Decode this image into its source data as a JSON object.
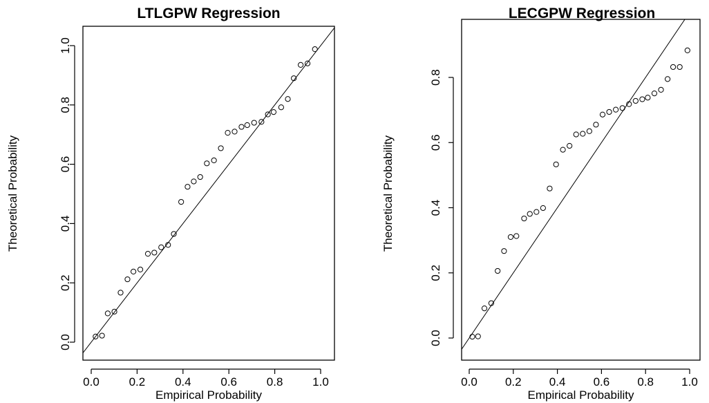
{
  "chart_data": [
    {
      "type": "scatter",
      "title": "LTLGPW Regression",
      "xlabel": "Empirical Probability",
      "ylabel": "Theoretical Probability",
      "xlim": [
        0,
        1
      ],
      "ylim": [
        0,
        1
      ],
      "xticks": [
        "0.0",
        "0.2",
        "0.4",
        "0.6",
        "0.8",
        "1.0"
      ],
      "yticks": [
        "0.0",
        "0.2",
        "0.4",
        "0.6",
        "0.8",
        "1.0"
      ],
      "reference_line": "y = x",
      "grid": false,
      "series": [
        {
          "x": [
            0.019,
            0.047,
            0.072,
            0.101,
            0.128,
            0.158,
            0.184,
            0.214,
            0.247,
            0.275,
            0.305,
            0.335,
            0.36,
            0.392,
            0.42,
            0.447,
            0.475,
            0.504,
            0.535,
            0.565,
            0.595,
            0.625,
            0.655,
            0.68,
            0.71,
            0.742,
            0.77,
            0.795,
            0.828,
            0.857,
            0.883,
            0.913,
            0.943,
            0.975
          ],
          "y": [
            0.019,
            0.022,
            0.097,
            0.103,
            0.167,
            0.212,
            0.238,
            0.245,
            0.298,
            0.302,
            0.32,
            0.328,
            0.365,
            0.473,
            0.524,
            0.542,
            0.557,
            0.603,
            0.613,
            0.654,
            0.706,
            0.71,
            0.726,
            0.732,
            0.74,
            0.743,
            0.768,
            0.776,
            0.792,
            0.82,
            0.89,
            0.935,
            0.94,
            0.988
          ]
        }
      ]
    },
    {
      "type": "scatter",
      "title": "LECGPW Regression",
      "xlabel": "Empirical Probability",
      "ylabel": "Theoretical Probability",
      "xlim": [
        0,
        1
      ],
      "ylim": [
        0,
        0.9
      ],
      "xticks": [
        "0.0",
        "0.2",
        "0.4",
        "0.6",
        "0.8",
        "1.0"
      ],
      "yticks": [
        "0.0",
        "0.2",
        "0.4",
        "0.6",
        "0.8"
      ],
      "reference_line": "y = x",
      "grid": false,
      "series": [
        {
          "x": [
            0.014,
            0.04,
            0.069,
            0.1,
            0.129,
            0.158,
            0.188,
            0.214,
            0.249,
            0.275,
            0.305,
            0.335,
            0.365,
            0.394,
            0.425,
            0.455,
            0.485,
            0.515,
            0.545,
            0.575,
            0.605,
            0.635,
            0.665,
            0.695,
            0.725,
            0.755,
            0.785,
            0.81,
            0.84,
            0.87,
            0.9,
            0.925,
            0.955,
            0.99
          ],
          "y": [
            0.004,
            0.005,
            0.091,
            0.107,
            0.206,
            0.267,
            0.31,
            0.313,
            0.367,
            0.381,
            0.387,
            0.399,
            0.459,
            0.533,
            0.578,
            0.59,
            0.625,
            0.627,
            0.635,
            0.655,
            0.686,
            0.694,
            0.701,
            0.706,
            0.718,
            0.728,
            0.733,
            0.738,
            0.751,
            0.762,
            0.795,
            0.832,
            0.832,
            0.883
          ]
        }
      ]
    }
  ]
}
